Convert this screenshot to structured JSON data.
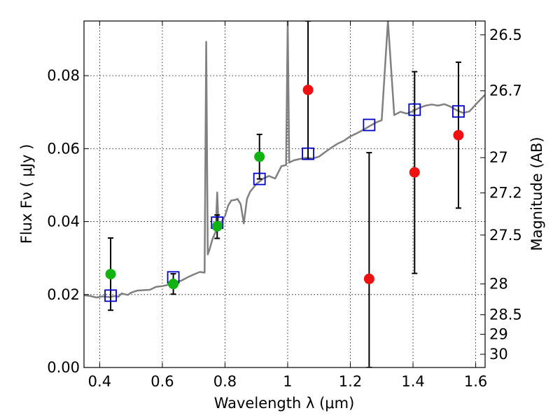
{
  "chart_data": {
    "type": "scatter",
    "xlabel": "Wavelength  λ (μm)",
    "ylabel": "Flux  Fν  ( μJy )",
    "y2label": "Magnitude (AB)",
    "xlim": [
      0.35,
      1.63
    ],
    "ylim": [
      0.0,
      0.095
    ],
    "x_ticks": [
      0.4,
      0.6,
      0.8,
      1.0,
      1.2,
      1.4,
      1.6
    ],
    "x_tick_labels": [
      "0.4",
      "0.6",
      "0.8",
      "1",
      "1.2",
      "1.4",
      "1.6"
    ],
    "y_ticks": [
      0.0,
      0.02,
      0.04,
      0.06,
      0.08
    ],
    "y_tick_labels": [
      "0.00",
      "0.02",
      "0.04",
      "0.06",
      "0.08"
    ],
    "y2_ticks": [
      {
        "label": "26.5",
        "mag": 26.5
      },
      {
        "label": "26.7",
        "mag": 26.7
      },
      {
        "label": "27",
        "mag": 27.0
      },
      {
        "label": "27.2",
        "mag": 27.2
      },
      {
        "label": "27.5",
        "mag": 27.5
      },
      {
        "label": "28",
        "mag": 28.0
      },
      {
        "label": "28.5",
        "mag": 28.5
      },
      {
        "label": "29",
        "mag": 29.0
      },
      {
        "label": "30",
        "mag": 30.0
      }
    ],
    "grid": true,
    "colors": {
      "sed": "#808080",
      "model": "#0000cc",
      "optical": "#11b311",
      "nir": "#ee1111",
      "errorbar": "#000000"
    },
    "sed_spectrum": [
      [
        0.35,
        0.0198
      ],
      [
        0.37,
        0.0196
      ],
      [
        0.39,
        0.0192
      ],
      [
        0.41,
        0.0195
      ],
      [
        0.43,
        0.0193
      ],
      [
        0.45,
        0.0196
      ],
      [
        0.46,
        0.0194
      ],
      [
        0.47,
        0.0203
      ],
      [
        0.48,
        0.0201
      ],
      [
        0.49,
        0.0199
      ],
      [
        0.5,
        0.0205
      ],
      [
        0.52,
        0.0211
      ],
      [
        0.54,
        0.0212
      ],
      [
        0.56,
        0.0213
      ],
      [
        0.58,
        0.0221
      ],
      [
        0.6,
        0.0223
      ],
      [
        0.62,
        0.0227
      ],
      [
        0.64,
        0.0234
      ],
      [
        0.66,
        0.0238
      ],
      [
        0.68,
        0.0247
      ],
      [
        0.7,
        0.0255
      ],
      [
        0.72,
        0.0262
      ],
      [
        0.735,
        0.026
      ],
      [
        0.74,
        0.0893
      ],
      [
        0.745,
        0.031
      ],
      [
        0.75,
        0.0322
      ],
      [
        0.76,
        0.0352
      ],
      [
        0.77,
        0.0372
      ],
      [
        0.775,
        0.048
      ],
      [
        0.78,
        0.0377
      ],
      [
        0.79,
        0.0402
      ],
      [
        0.8,
        0.0415
      ],
      [
        0.81,
        0.0444
      ],
      [
        0.82,
        0.0458
      ],
      [
        0.83,
        0.0459
      ],
      [
        0.84,
        0.0462
      ],
      [
        0.85,
        0.0448
      ],
      [
        0.86,
        0.0395
      ],
      [
        0.87,
        0.0462
      ],
      [
        0.88,
        0.0482
      ],
      [
        0.9,
        0.0503
      ],
      [
        0.92,
        0.0517
      ],
      [
        0.94,
        0.0525
      ],
      [
        0.96,
        0.0518
      ],
      [
        0.98,
        0.0552
      ],
      [
        0.995,
        0.0555
      ],
      [
        1.0,
        0.095
      ],
      [
        1.005,
        0.0562
      ],
      [
        1.02,
        0.0568
      ],
      [
        1.04,
        0.0572
      ],
      [
        1.06,
        0.0575
      ],
      [
        1.08,
        0.0573
      ],
      [
        1.1,
        0.0578
      ],
      [
        1.12,
        0.0591
      ],
      [
        1.14,
        0.0603
      ],
      [
        1.16,
        0.0614
      ],
      [
        1.18,
        0.0622
      ],
      [
        1.2,
        0.0634
      ],
      [
        1.22,
        0.0642
      ],
      [
        1.24,
        0.0651
      ],
      [
        1.26,
        0.0661
      ],
      [
        1.28,
        0.0671
      ],
      [
        1.3,
        0.0678
      ],
      [
        1.32,
        0.095
      ],
      [
        1.34,
        0.0692
      ],
      [
        1.36,
        0.0701
      ],
      [
        1.38,
        0.0696
      ],
      [
        1.4,
        0.0703
      ],
      [
        1.42,
        0.0712
      ],
      [
        1.44,
        0.0718
      ],
      [
        1.46,
        0.0721
      ],
      [
        1.48,
        0.0718
      ],
      [
        1.5,
        0.0722
      ],
      [
        1.52,
        0.0715
      ],
      [
        1.54,
        0.0705
      ],
      [
        1.56,
        0.0698
      ],
      [
        1.58,
        0.0702
      ],
      [
        1.6,
        0.0721
      ],
      [
        1.63,
        0.0748
      ]
    ],
    "model_points": [
      {
        "x": 0.435,
        "y": 0.0197
      },
      {
        "x": 0.635,
        "y": 0.0247
      },
      {
        "x": 0.775,
        "y": 0.0397
      },
      {
        "x": 0.91,
        "y": 0.0517
      },
      {
        "x": 1.065,
        "y": 0.0586
      },
      {
        "x": 1.26,
        "y": 0.0665
      },
      {
        "x": 1.405,
        "y": 0.0707
      },
      {
        "x": 1.545,
        "y": 0.0702
      }
    ],
    "optical_points": [
      {
        "x": 0.435,
        "y": 0.0256,
        "lo": 0.0157,
        "hi": 0.0355
      },
      {
        "x": 0.635,
        "y": 0.0229,
        "lo": 0.0201,
        "hi": 0.0257
      },
      {
        "x": 0.775,
        "y": 0.0387,
        "lo": 0.0354,
        "hi": 0.0418
      },
      {
        "x": 0.91,
        "y": 0.0578,
        "lo": 0.0517,
        "hi": 0.0639
      }
    ],
    "nir_points": [
      {
        "x": 1.065,
        "y": 0.0761,
        "lo": 0.0571,
        "hi": 0.095
      },
      {
        "x": 1.26,
        "y": 0.0243,
        "lo": 0.0,
        "hi": 0.0589
      },
      {
        "x": 1.405,
        "y": 0.0535,
        "lo": 0.0258,
        "hi": 0.0811
      },
      {
        "x": 1.545,
        "y": 0.0637,
        "lo": 0.0437,
        "hi": 0.0837
      }
    ]
  }
}
